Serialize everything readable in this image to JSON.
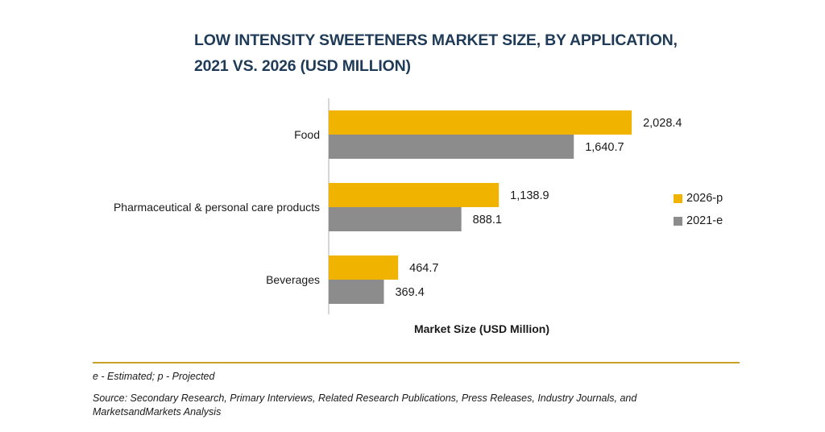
{
  "title_line1": "LOW INTENSITY SWEETENERS MARKET SIZE, BY APPLICATION,",
  "title_line2": "2021 VS. 2026 (USD MILLION)",
  "legend": [
    {
      "label": "2026-p",
      "color": "#f0b400"
    },
    {
      "label": "2021-e",
      "color": "#8c8c8c"
    }
  ],
  "footer": {
    "note": "e - Estimated; p - Projected",
    "source": "Source: Secondary Research, Primary Interviews, Related Research Publications, Press Releases, Industry Journals, and MarketsandMarkets Analysis"
  },
  "chart_data": {
    "type": "bar",
    "orientation": "horizontal",
    "title": "LOW INTENSITY SWEETENERS MARKET SIZE, BY APPLICATION, 2021 VS. 2026 (USD MILLION)",
    "xlabel": "Market Size (USD Million)",
    "ylabel": "",
    "categories": [
      "Food",
      "Pharmaceutical & personal care products",
      "Beverages"
    ],
    "series": [
      {
        "name": "2026-p",
        "color": "#f0b400",
        "values": [
          2028.4,
          1138.9,
          464.7
        ],
        "labels": [
          "2,028.4",
          "1,138.9",
          "464.7"
        ]
      },
      {
        "name": "2021-e",
        "color": "#8c8c8c",
        "values": [
          1640.7,
          888.1,
          369.4
        ],
        "labels": [
          "1,640.7",
          "888.1",
          "369.4"
        ]
      }
    ],
    "xlim": [
      0,
      2400
    ],
    "grid": false,
    "legend_position": "right"
  }
}
